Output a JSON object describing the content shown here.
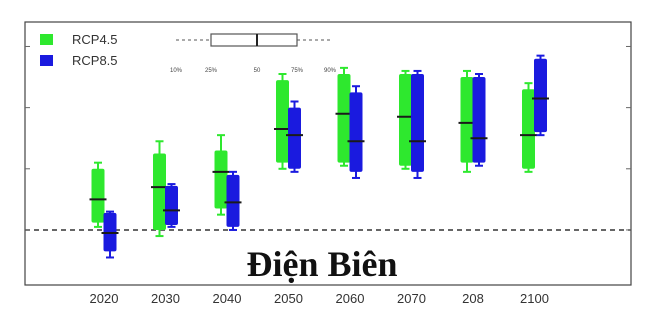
{
  "chart_data": {
    "type": "boxplot",
    "title": "Điện Biên",
    "categories": [
      "2020",
      "2030",
      "2040",
      "2050",
      "2060",
      "2070",
      "208",
      "2100"
    ],
    "series": [
      {
        "name": "RCP4.5",
        "color": "#2ee82e",
        "boxes": [
          {
            "min": 0.05,
            "q1": 0.12,
            "median": 0.5,
            "q3": 1.0,
            "max": 1.1
          },
          {
            "min": -0.1,
            "q1": 0.0,
            "median": 0.7,
            "q3": 1.25,
            "max": 1.45
          },
          {
            "min": 0.25,
            "q1": 0.35,
            "median": 0.95,
            "q3": 1.3,
            "max": 1.55
          },
          {
            "min": 1.0,
            "q1": 1.1,
            "median": 1.65,
            "q3": 2.45,
            "max": 2.55
          },
          {
            "min": 1.05,
            "q1": 1.1,
            "median": 1.9,
            "q3": 2.55,
            "max": 2.65
          },
          {
            "min": 1.0,
            "q1": 1.05,
            "median": 1.85,
            "q3": 2.55,
            "max": 2.6
          },
          {
            "min": 0.95,
            "q1": 1.1,
            "median": 1.75,
            "q3": 2.5,
            "max": 2.6
          },
          {
            "min": 0.95,
            "q1": 1.0,
            "median": 1.55,
            "q3": 2.3,
            "max": 2.4
          }
        ]
      },
      {
        "name": "RCP8.5",
        "color": "#1a1adf",
        "boxes": [
          {
            "min": -0.45,
            "q1": -0.35,
            "median": -0.05,
            "q3": 0.28,
            "max": 0.3
          },
          {
            "min": 0.05,
            "q1": 0.08,
            "median": 0.32,
            "q3": 0.72,
            "max": 0.75
          },
          {
            "min": 0.0,
            "q1": 0.05,
            "median": 0.45,
            "q3": 0.9,
            "max": 0.95
          },
          {
            "min": 0.95,
            "q1": 1.0,
            "median": 1.55,
            "q3": 2.0,
            "max": 2.1
          },
          {
            "min": 0.85,
            "q1": 0.95,
            "median": 1.45,
            "q3": 2.25,
            "max": 2.35
          },
          {
            "min": 0.85,
            "q1": 0.95,
            "median": 1.45,
            "q3": 2.55,
            "max": 2.6
          },
          {
            "min": 1.05,
            "q1": 1.1,
            "median": 1.5,
            "q3": 2.5,
            "max": 2.55
          },
          {
            "min": 1.55,
            "q1": 1.6,
            "median": 2.15,
            "q3": 2.8,
            "max": 2.85
          }
        ]
      }
    ],
    "reference_line": 0,
    "ylim": [
      -0.9,
      3.4
    ],
    "legend": {
      "position": "top-left",
      "quantile_labels": [
        "10%",
        "25%",
        "50",
        "75%",
        "90%"
      ]
    },
    "grid": false
  }
}
